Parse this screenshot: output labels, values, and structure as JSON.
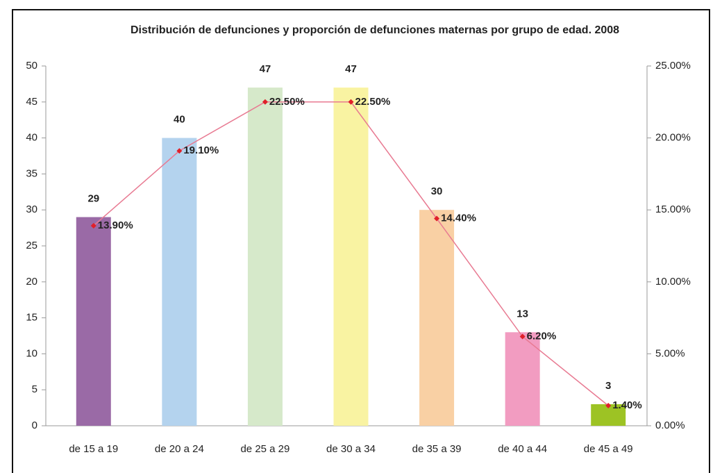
{
  "chart_data": {
    "type": "bar",
    "title": "Distribución de defunciones y proporción de defunciones maternas por grupo de edad. 2008",
    "categories": [
      "de 15 a 19",
      "de 20 a 24",
      "de 25 a 29",
      "de 30 a 34",
      "de 35 a 39",
      "de 40 a 44",
      "de 45 a 49"
    ],
    "series": [
      {
        "type": "bar",
        "colors": [
          "#9a6aa6",
          "#b4d3ee",
          "#d6e9ca",
          "#f9f3a2",
          "#f9d0a4",
          "#f29cc1",
          "#9dc324"
        ],
        "values": [
          29,
          40,
          47,
          47,
          30,
          13,
          3
        ]
      },
      {
        "type": "line",
        "axis": "y2",
        "color": "#e87a92",
        "marker_color": "#e0202a",
        "values": [
          13.9,
          19.1,
          22.5,
          22.5,
          14.4,
          6.2,
          1.4
        ],
        "value_labels": [
          "13.90%",
          "19.10%",
          "22.50%",
          "22.50%",
          "14.40%",
          "6.20%",
          "1.40%"
        ]
      }
    ],
    "ylim": [
      0,
      50
    ],
    "yticks": [
      0,
      5,
      10,
      15,
      20,
      25,
      30,
      35,
      40,
      45,
      50
    ],
    "y2lim": [
      0,
      25
    ],
    "y2ticks": [
      {
        "value": 0,
        "label": "0.00%"
      },
      {
        "value": 5,
        "label": "5.00%"
      },
      {
        "value": 10,
        "label": "10.00%"
      },
      {
        "value": 15,
        "label": "15.00%"
      },
      {
        "value": 20,
        "label": "20.00%"
      },
      {
        "value": 25,
        "label": "25.00%"
      }
    ],
    "grid": false
  }
}
